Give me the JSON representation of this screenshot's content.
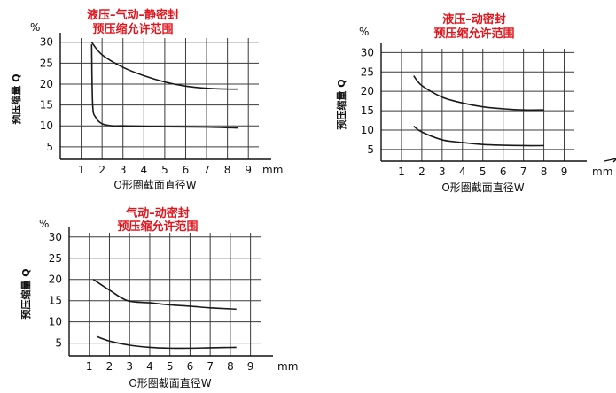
{
  "chart_data": [
    {
      "type": "line",
      "title": [
        "液压–气动–静密封",
        "预压缩允许范围"
      ],
      "ylabel": "预压缩量 Q",
      "xlabel": "O形圈截面直径W",
      "unit_x": "mm",
      "unit_y": "%",
      "x_ticks": [
        1,
        2,
        3,
        4,
        5,
        6,
        7,
        8,
        9
      ],
      "y_ticks": [
        5,
        10,
        15,
        20,
        25,
        30
      ],
      "xlim": [
        0,
        9.5
      ],
      "ylim": [
        2,
        31
      ],
      "grid": true,
      "series": [
        {
          "x": [
            1.5,
            2,
            3,
            4,
            5,
            6,
            7,
            8,
            8.5
          ],
          "y": [
            30,
            27,
            24,
            22,
            20.5,
            19.5,
            19,
            18.8,
            18.8
          ]
        },
        {
          "x": [
            1.5,
            1.55,
            1.7,
            2,
            2.5,
            3,
            5,
            7,
            8.5
          ],
          "y": [
            29.5,
            15,
            12,
            10.5,
            10,
            10,
            9.8,
            9.7,
            9.5
          ]
        }
      ]
    },
    {
      "type": "line",
      "title": [
        "液压–动密封",
        "预压缩允许范围"
      ],
      "ylabel": "预压缩量 Q",
      "xlabel": "O形圈截面直径W",
      "unit_x": "mm",
      "unit_y": "%",
      "x_ticks": [
        1,
        2,
        3,
        4,
        5,
        6,
        7,
        8,
        9
      ],
      "y_ticks": [
        5,
        10,
        15,
        20,
        25,
        30
      ],
      "xlim": [
        0,
        9.5
      ],
      "ylim": [
        2,
        31
      ],
      "grid": true,
      "series": [
        {
          "x": [
            1.6,
            2,
            3,
            4,
            5,
            6,
            7,
            8
          ],
          "y": [
            24,
            21.5,
            18.5,
            17,
            16,
            15.5,
            15.2,
            15.2
          ]
        },
        {
          "x": [
            1.6,
            2,
            3,
            4,
            5,
            6,
            7,
            8
          ],
          "y": [
            11,
            9.5,
            7.5,
            6.8,
            6.3,
            6.1,
            6,
            6
          ]
        }
      ]
    },
    {
      "type": "line",
      "title": [
        "气动–动密封",
        "预压缩允许范围"
      ],
      "ylabel": "预压缩量 Q",
      "xlabel": "O形圈截面直径W",
      "unit_x": "mm",
      "unit_y": "%",
      "x_ticks": [
        1,
        2,
        3,
        4,
        5,
        6,
        7,
        8,
        9
      ],
      "y_ticks": [
        5,
        10,
        15,
        20,
        25,
        30
      ],
      "xlim": [
        0,
        9.5
      ],
      "ylim": [
        2,
        31
      ],
      "grid": true,
      "series": [
        {
          "x": [
            1.2,
            2,
            2.9,
            4,
            5,
            6,
            7,
            8.3
          ],
          "y": [
            20,
            17.5,
            15,
            14.5,
            14,
            13.7,
            13.3,
            13
          ]
        },
        {
          "x": [
            1.4,
            2,
            3,
            4,
            5,
            6,
            7,
            8.3
          ],
          "y": [
            6.5,
            5.5,
            4.5,
            4,
            3.8,
            3.8,
            3.9,
            4
          ]
        }
      ]
    }
  ]
}
